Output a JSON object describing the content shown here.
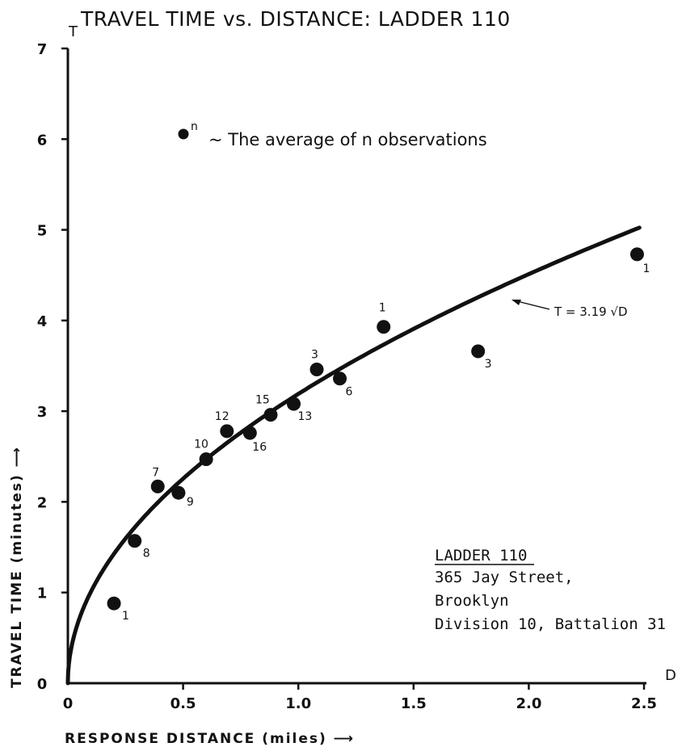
{
  "chart_data": {
    "type": "scatter",
    "title": "TRAVEL TIME vs. DISTANCE:  LADDER 110",
    "xlabel": "RESPONSE  DISTANCE (miles)",
    "ylabel": "TRAVEL  TIME  (minutes)",
    "x_axis_letter": "D",
    "y_axis_letter": "T",
    "xlim": [
      0,
      2.5
    ],
    "ylim": [
      0,
      7
    ],
    "x_ticks": [
      "0",
      "0.5",
      "1.0",
      "1.5",
      "2.0",
      "2.5"
    ],
    "y_ticks": [
      "0",
      "1",
      "2",
      "3",
      "4",
      "5",
      "6",
      "7"
    ],
    "grid": false,
    "points": [
      {
        "x": 0.2,
        "y": 0.88,
        "n": "1"
      },
      {
        "x": 0.29,
        "y": 1.57,
        "n": "8"
      },
      {
        "x": 0.39,
        "y": 2.17,
        "n": "7"
      },
      {
        "x": 0.48,
        "y": 2.1,
        "n": "9"
      },
      {
        "x": 0.6,
        "y": 2.47,
        "n": "10"
      },
      {
        "x": 0.69,
        "y": 2.78,
        "n": "12"
      },
      {
        "x": 0.79,
        "y": 2.76,
        "n": "16"
      },
      {
        "x": 0.88,
        "y": 2.96,
        "n": "15"
      },
      {
        "x": 0.98,
        "y": 3.08,
        "n": "13"
      },
      {
        "x": 1.08,
        "y": 3.46,
        "n": "3"
      },
      {
        "x": 1.18,
        "y": 3.36,
        "n": "6"
      },
      {
        "x": 1.37,
        "y": 3.93,
        "n": "1"
      },
      {
        "x": 1.78,
        "y": 3.66,
        "n": "3"
      },
      {
        "x": 2.47,
        "y": 4.73,
        "n": "1"
      }
    ],
    "fit": {
      "label": "T = 3.19 √D",
      "coefficient": 3.19,
      "x_max": 2.48
    },
    "legend_note": {
      "marker_label": "n",
      "text": "~ The average of n observations"
    },
    "annotation_box": {
      "heading": "LADDER 110",
      "lines": [
        "365 Jay Street,",
        "Brooklyn",
        "Division 10,  Battalion 31"
      ]
    }
  }
}
